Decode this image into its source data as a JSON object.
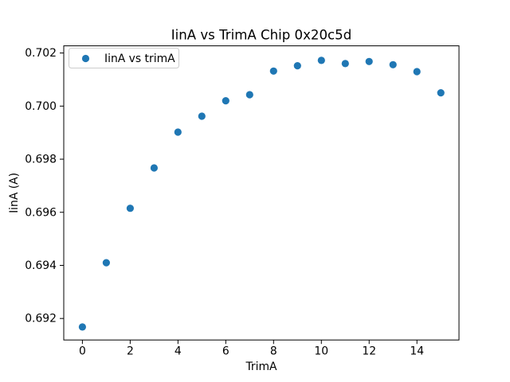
{
  "window": {
    "background": "#ffffff"
  },
  "chart_data": {
    "type": "scatter",
    "title": "IinA vs TrimA Chip 0x20c5d",
    "xlabel": "TrimA",
    "ylabel": "IinA (A)",
    "legend": {
      "label": "IinA vs trimA",
      "position": "upper left",
      "marker": "circle",
      "border_color": "#cccccc"
    },
    "marker_color": "#1f77b4",
    "marker_radius_px": 4.6,
    "grid": false,
    "x": [
      0,
      1,
      2,
      3,
      4,
      5,
      6,
      7,
      8,
      9,
      10,
      11,
      12,
      13,
      14,
      15
    ],
    "y": [
      0.69168,
      0.6941,
      0.69615,
      0.69767,
      0.69902,
      0.69962,
      0.7002,
      0.70043,
      0.70132,
      0.70152,
      0.70172,
      0.7016,
      0.70168,
      0.70156,
      0.7013,
      0.7005
    ],
    "xlim": [
      -0.78,
      15.76
    ],
    "ylim": [
      0.69119,
      0.70227
    ],
    "xticks": [
      0,
      2,
      4,
      6,
      8,
      10,
      12,
      14
    ],
    "xtick_labels": [
      "0",
      "2",
      "4",
      "6",
      "8",
      "10",
      "12",
      "14"
    ],
    "yticks": [
      0.692,
      0.694,
      0.696,
      0.698,
      0.7,
      0.702
    ],
    "ytick_labels": [
      "0.692",
      "0.694",
      "0.696",
      "0.698",
      "0.700",
      "0.702"
    ]
  }
}
